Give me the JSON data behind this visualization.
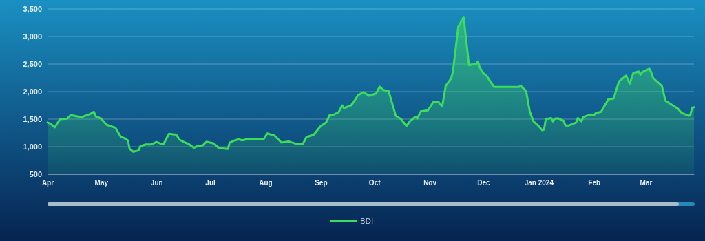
{
  "chart_data": {
    "type": "area",
    "legend": "bottom",
    "grid": "y",
    "x": [
      "2023-04-01",
      "2023-04-03",
      "2023-04-05",
      "2023-04-08",
      "2023-04-12",
      "2023-04-14",
      "2023-04-20",
      "2023-04-25",
      "2023-04-27",
      "2023-04-28",
      "2023-05-01",
      "2023-05-04",
      "2023-05-06",
      "2023-05-09",
      "2023-05-12",
      "2023-05-14",
      "2023-05-16",
      "2023-05-17",
      "2023-05-19",
      "2023-05-22",
      "2023-05-23",
      "2023-05-26",
      "2023-05-29",
      "2023-06-01",
      "2023-06-03",
      "2023-06-05",
      "2023-06-08",
      "2023-06-12",
      "2023-06-14",
      "2023-06-17",
      "2023-06-19",
      "2023-06-22",
      "2023-06-24",
      "2023-06-27",
      "2023-06-29",
      "2023-07-03",
      "2023-07-06",
      "2023-07-11",
      "2023-07-12",
      "2023-07-14",
      "2023-07-17",
      "2023-07-19",
      "2023-07-22",
      "2023-07-26",
      "2023-07-31",
      "2023-08-02",
      "2023-08-06",
      "2023-08-10",
      "2023-08-14",
      "2023-08-18",
      "2023-08-22",
      "2023-08-24",
      "2023-08-28",
      "2023-09-01",
      "2023-09-04",
      "2023-09-06",
      "2023-09-07",
      "2023-09-11",
      "2023-09-13",
      "2023-09-14",
      "2023-09-18",
      "2023-09-19",
      "2023-09-22",
      "2023-09-25",
      "2023-09-28",
      "2023-10-02",
      "2023-10-04",
      "2023-10-06",
      "2023-10-09",
      "2023-10-13",
      "2023-10-16",
      "2023-10-19",
      "2023-10-21",
      "2023-10-24",
      "2023-10-25",
      "2023-10-27",
      "2023-10-31",
      "2023-11-03",
      "2023-11-06",
      "2023-11-08",
      "2023-11-10",
      "2023-11-13",
      "2023-11-14",
      "2023-11-17",
      "2023-11-20",
      "2023-11-23",
      "2023-11-27",
      "2023-11-28",
      "2023-11-29",
      "2023-12-01",
      "2023-12-03",
      "2023-12-07",
      "2023-12-21",
      "2023-12-22",
      "2023-12-25",
      "2023-12-27",
      "2023-12-29",
      "2024-01-01",
      "2024-01-03",
      "2024-01-04",
      "2024-01-05",
      "2024-01-08",
      "2024-01-09",
      "2024-01-10",
      "2024-01-12",
      "2024-01-15",
      "2024-01-16",
      "2024-01-18",
      "2024-01-22",
      "2024-01-23",
      "2024-01-25",
      "2024-01-26",
      "2024-01-30",
      "2024-02-01",
      "2024-02-02",
      "2024-02-05",
      "2024-02-09",
      "2024-02-12",
      "2024-02-15",
      "2024-02-19",
      "2024-02-21",
      "2024-02-23",
      "2024-02-26",
      "2024-02-27",
      "2024-02-28",
      "2024-03-03",
      "2024-03-04",
      "2024-03-05",
      "2024-03-10",
      "2024-03-12",
      "2024-03-19",
      "2024-03-21",
      "2024-03-25",
      "2024-03-26",
      "2024-03-27",
      "2024-03-28"
    ],
    "series": [
      {
        "name": "BDI",
        "color": "#3ddc5f",
        "values": [
          1440,
          1410,
          1350,
          1500,
          1510,
          1575,
          1535,
          1595,
          1633,
          1550,
          1510,
          1400,
          1375,
          1345,
          1180,
          1155,
          1115,
          960,
          910,
          930,
          1010,
          1040,
          1040,
          1085,
          1060,
          1050,
          1235,
          1220,
          1125,
          1075,
          1050,
          980,
          1010,
          1025,
          1090,
          1060,
          975,
          960,
          1075,
          1105,
          1135,
          1115,
          1138,
          1145,
          1135,
          1240,
          1205,
          1075,
          1095,
          1055,
          1050,
          1175,
          1215,
          1375,
          1440,
          1575,
          1565,
          1625,
          1750,
          1700,
          1750,
          1790,
          1940,
          1990,
          1925,
          1965,
          2090,
          2030,
          2010,
          1560,
          1500,
          1375,
          1465,
          1540,
          1510,
          1640,
          1660,
          1810,
          1810,
          1730,
          2105,
          2240,
          2355,
          3175,
          3355,
          2480,
          2500,
          2550,
          2440,
          2335,
          2280,
          2085,
          2085,
          2105,
          2010,
          1645,
          1465,
          1375,
          1300,
          1310,
          1500,
          1520,
          1460,
          1510,
          1515,
          1470,
          1385,
          1385,
          1440,
          1520,
          1460,
          1540,
          1585,
          1575,
          1610,
          1635,
          1860,
          1875,
          2185,
          2290,
          2145,
          2335,
          2365,
          2305,
          2355,
          2415,
          2355,
          2250,
          2105,
          1835,
          1690,
          1615,
          1560,
          1585,
          1710,
          1715
        ]
      }
    ],
    "xlim": [
      "2023-04-01",
      "2024-03-28"
    ],
    "xticks": [
      {
        "value": "2023-04-01",
        "label": "Apr"
      },
      {
        "value": "2023-05-01",
        "label": "May"
      },
      {
        "value": "2023-06-01",
        "label": "Jun"
      },
      {
        "value": "2023-07-01",
        "label": "Jul"
      },
      {
        "value": "2023-08-01",
        "label": "Aug"
      },
      {
        "value": "2023-09-01",
        "label": "Sep"
      },
      {
        "value": "2023-10-01",
        "label": "Oct"
      },
      {
        "value": "2023-11-01",
        "label": "Nov"
      },
      {
        "value": "2023-12-01",
        "label": "Dec"
      },
      {
        "value": "2024-01-01",
        "label": "Jan 2024"
      },
      {
        "value": "2024-02-01",
        "label": "Feb"
      },
      {
        "value": "2024-03-01",
        "label": "Mar"
      }
    ],
    "ylim": [
      500,
      3500
    ],
    "yticks": [
      {
        "value": 500,
        "label": "500"
      },
      {
        "value": 1000,
        "label": "1,000"
      },
      {
        "value": 1500,
        "label": "1,500"
      },
      {
        "value": 2000,
        "label": "2,000"
      },
      {
        "value": 2500,
        "label": "2,500"
      },
      {
        "value": 3000,
        "label": "3,000"
      },
      {
        "value": 3500,
        "label": "3,500"
      }
    ]
  }
}
